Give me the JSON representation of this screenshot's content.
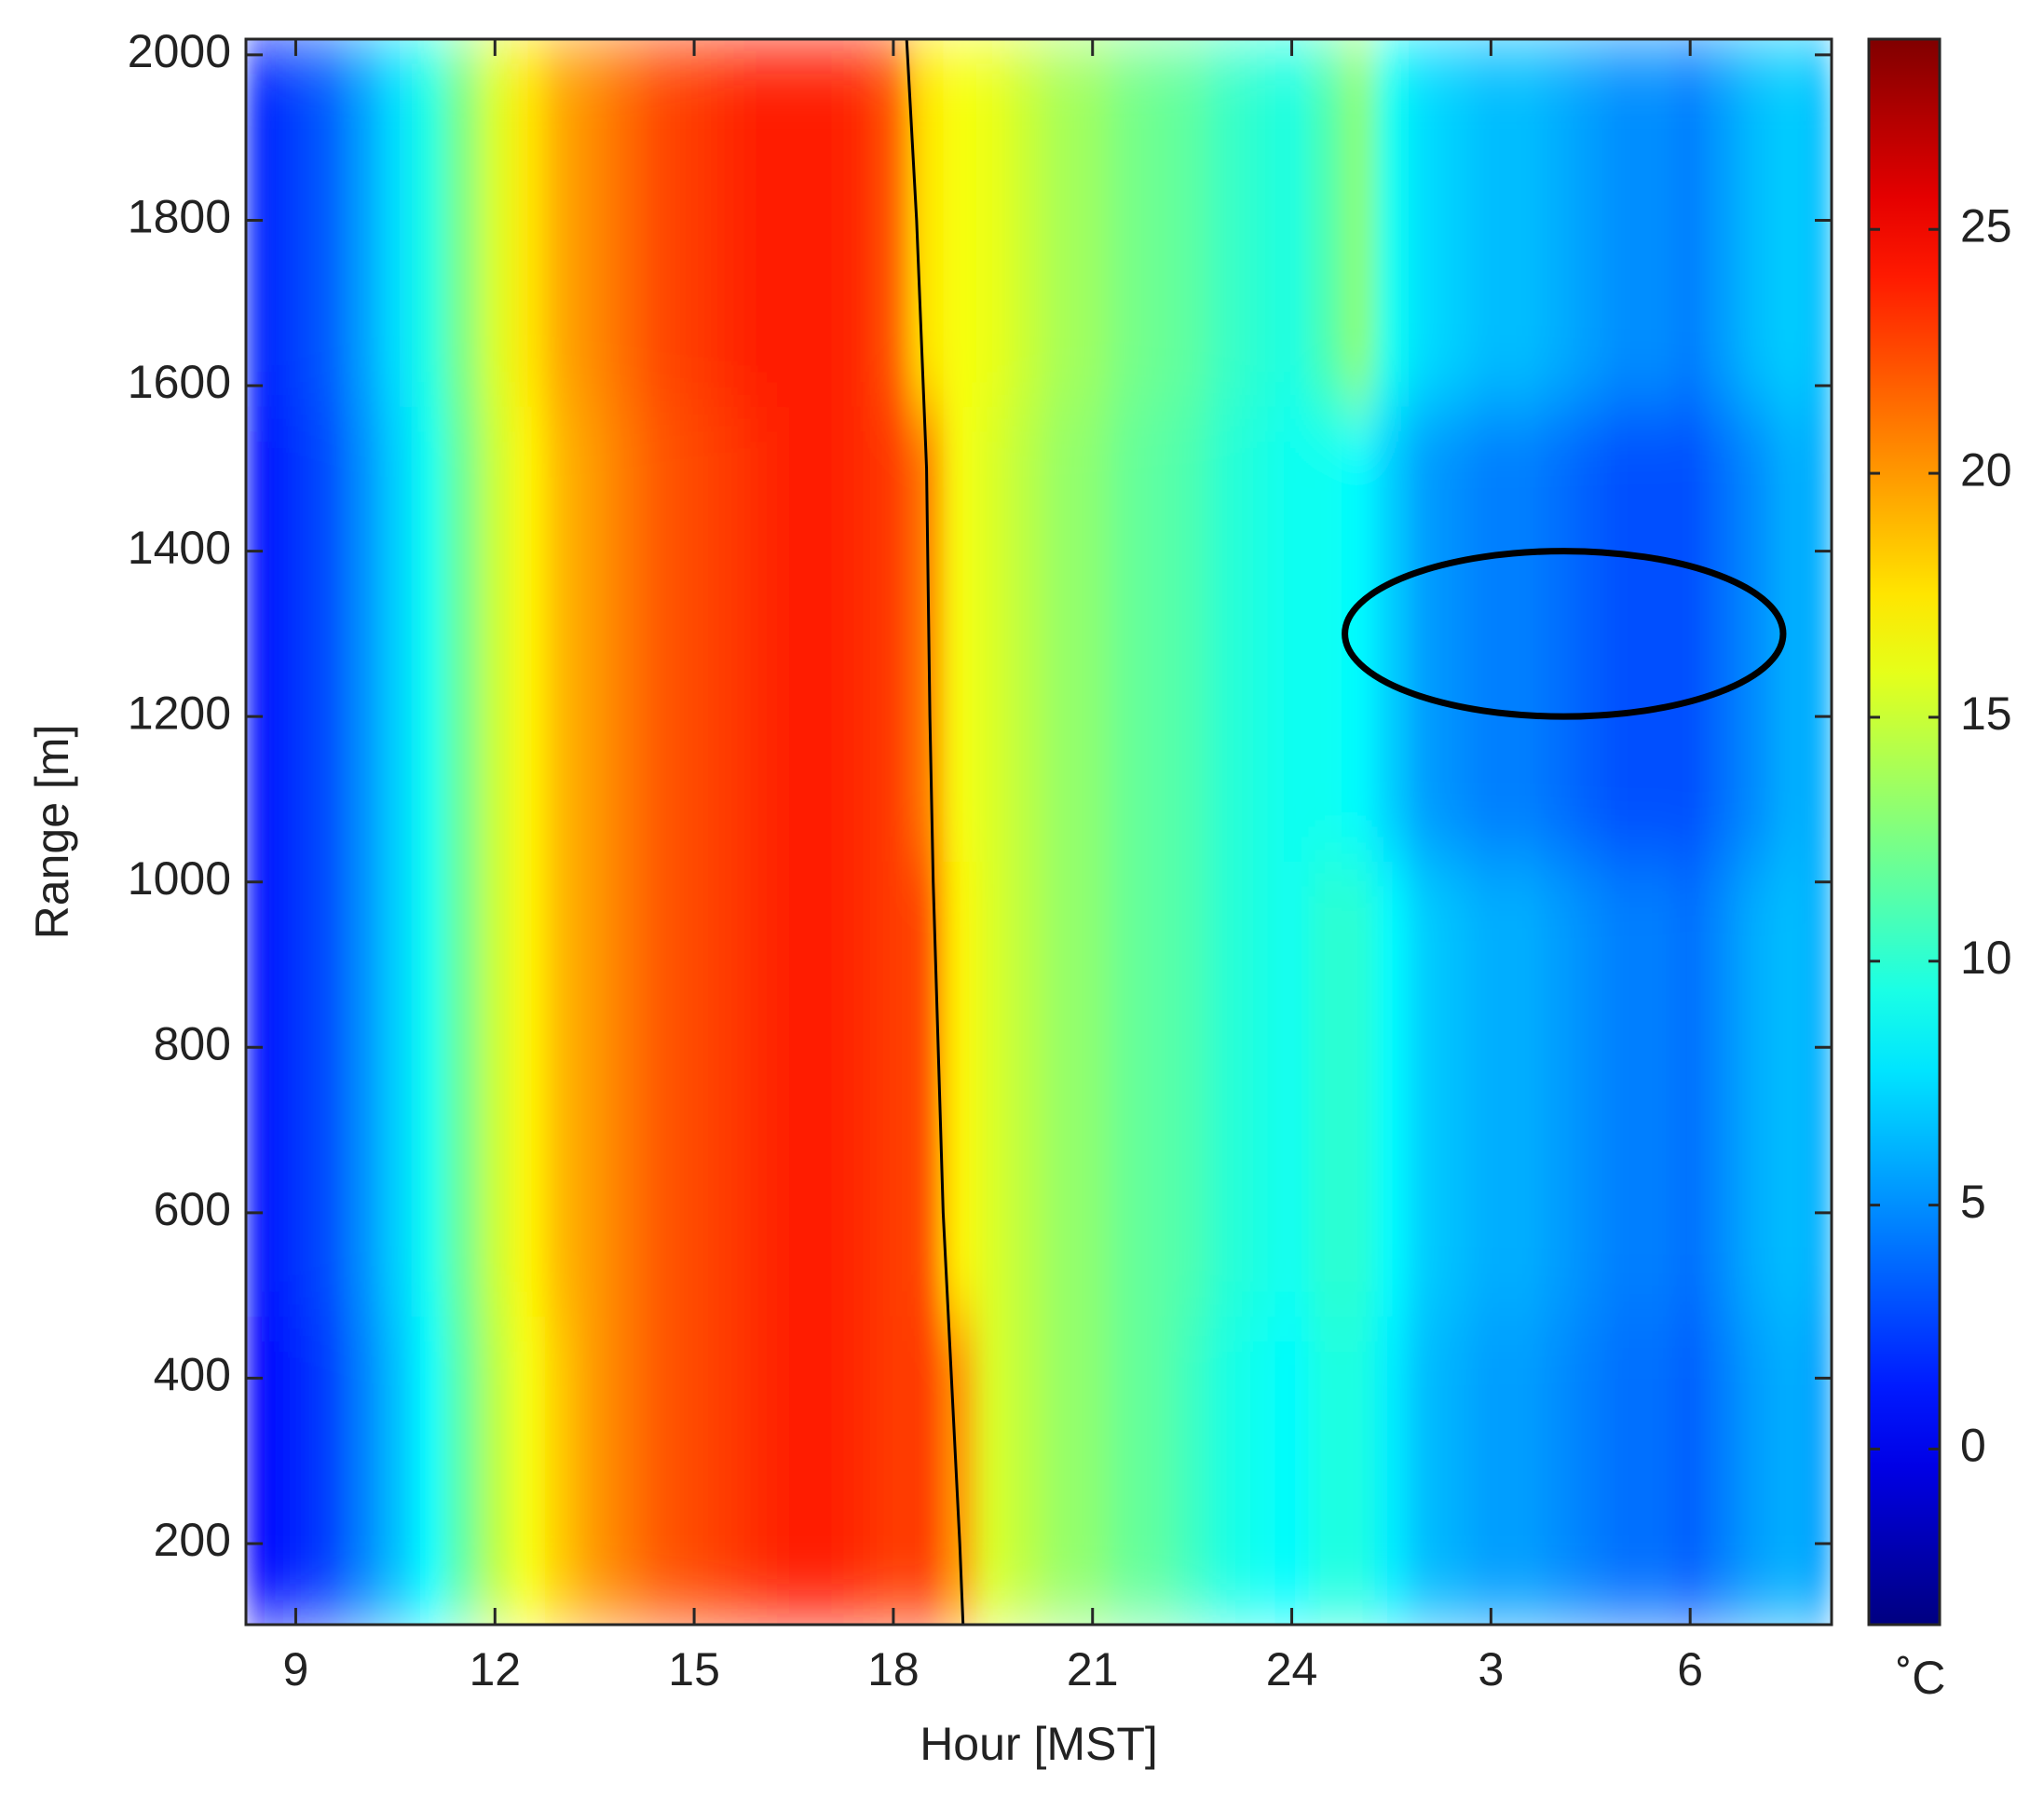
{
  "chart_data": {
    "type": "heatmap",
    "xlabel": "Hour [MST]",
    "ylabel": "Range [m]",
    "colorbar_label": "˚C",
    "colormap": "jet",
    "x": [
      8.5,
      9,
      9.5,
      10,
      10.5,
      11,
      11.5,
      12,
      12.5,
      13,
      13.5,
      14,
      14.5,
      15,
      15.5,
      16,
      16.5,
      17,
      17.5,
      18,
      18.5,
      19,
      19.5,
      20,
      20.5,
      21,
      21.5,
      22,
      22.5,
      23,
      23.5,
      24,
      24.5,
      25,
      25.5,
      26,
      26.5,
      27,
      27.5,
      28,
      28.5,
      29,
      29.5,
      30,
      30.5,
      31,
      31.5,
      32
    ],
    "y": [
      200,
      750,
      1300,
      1850
    ],
    "z": [
      [
        0.5,
        1.5,
        2.5,
        4.5,
        6.5,
        8.5,
        11.5,
        14.5,
        16.5,
        18.5,
        20,
        21,
        22,
        22.5,
        23,
        23.5,
        24,
        24,
        23.5,
        23,
        23,
        20,
        15.5,
        14.5,
        13.5,
        13,
        12,
        11.5,
        10.5,
        9.5,
        9,
        8.5,
        9.5,
        9.5,
        8,
        6.5,
        6,
        5.5,
        5.5,
        5,
        4.5,
        4,
        4,
        3.5,
        4.5,
        5.5,
        6,
        5.5
      ],
      [
        1,
        2,
        3,
        5,
        7,
        9,
        12,
        15,
        17,
        19,
        20,
        21,
        22,
        22.5,
        23,
        23.5,
        24,
        24,
        23.5,
        23,
        22.5,
        17,
        15.5,
        14.5,
        13.5,
        13,
        12,
        11.5,
        11,
        10,
        9.5,
        9,
        10,
        10,
        8.5,
        7,
        6.5,
        6,
        6,
        5.5,
        5,
        4.5,
        4.5,
        4,
        5,
        6,
        6.5,
        6
      ],
      [
        1,
        2,
        3,
        5,
        7,
        9,
        12,
        15,
        17,
        19,
        20,
        21,
        22,
        22.5,
        23,
        23.5,
        24,
        24,
        23.5,
        23,
        21,
        16.5,
        15.5,
        14.5,
        13.5,
        13,
        12,
        11.5,
        11,
        10,
        9.5,
        9,
        9,
        8.5,
        7,
        5.5,
        5,
        4.5,
        4.5,
        4,
        3.5,
        3,
        3,
        3,
        4,
        5,
        6,
        6
      ],
      [
        1.5,
        2.5,
        3.5,
        5.5,
        7.5,
        9.5,
        12.5,
        15.5,
        17.5,
        19.5,
        20.5,
        21.5,
        22.5,
        23,
        23.5,
        24,
        24,
        24,
        23.5,
        22,
        17.5,
        16.5,
        16,
        15,
        14,
        13.5,
        12.5,
        12,
        11.5,
        10.5,
        10,
        9.5,
        11,
        13,
        9,
        7.5,
        7,
        6.5,
        6.5,
        6,
        5.5,
        5,
        5,
        4.5,
        5.5,
        6.5,
        7,
        6.5
      ]
    ],
    "boundary": {
      "color": "#000000",
      "x": [
        18.2,
        18.35,
        18.5,
        18.55,
        18.6,
        18.75,
        19.0,
        19.05
      ],
      "y": [
        2019,
        1800,
        1500,
        1200,
        1000,
        600,
        200,
        102
      ]
    },
    "ellipse": {
      "cx": 28.1,
      "cy": 1300,
      "rx": 3.3,
      "ry": 100,
      "color": "#000000"
    },
    "xlim": [
      8.25,
      32.13
    ],
    "ylim": [
      102,
      2019
    ],
    "clim": [
      -3.6,
      28.9
    ],
    "xticks": [
      9,
      12,
      15,
      18,
      21,
      24,
      {
        "value": 27,
        "label": "3"
      },
      {
        "value": 30,
        "label": "6"
      }
    ],
    "yticks": [
      200,
      400,
      600,
      800,
      1000,
      1200,
      1400,
      1600,
      1800,
      2000
    ],
    "cticks": [
      0,
      5,
      10,
      15,
      20,
      25
    ]
  }
}
